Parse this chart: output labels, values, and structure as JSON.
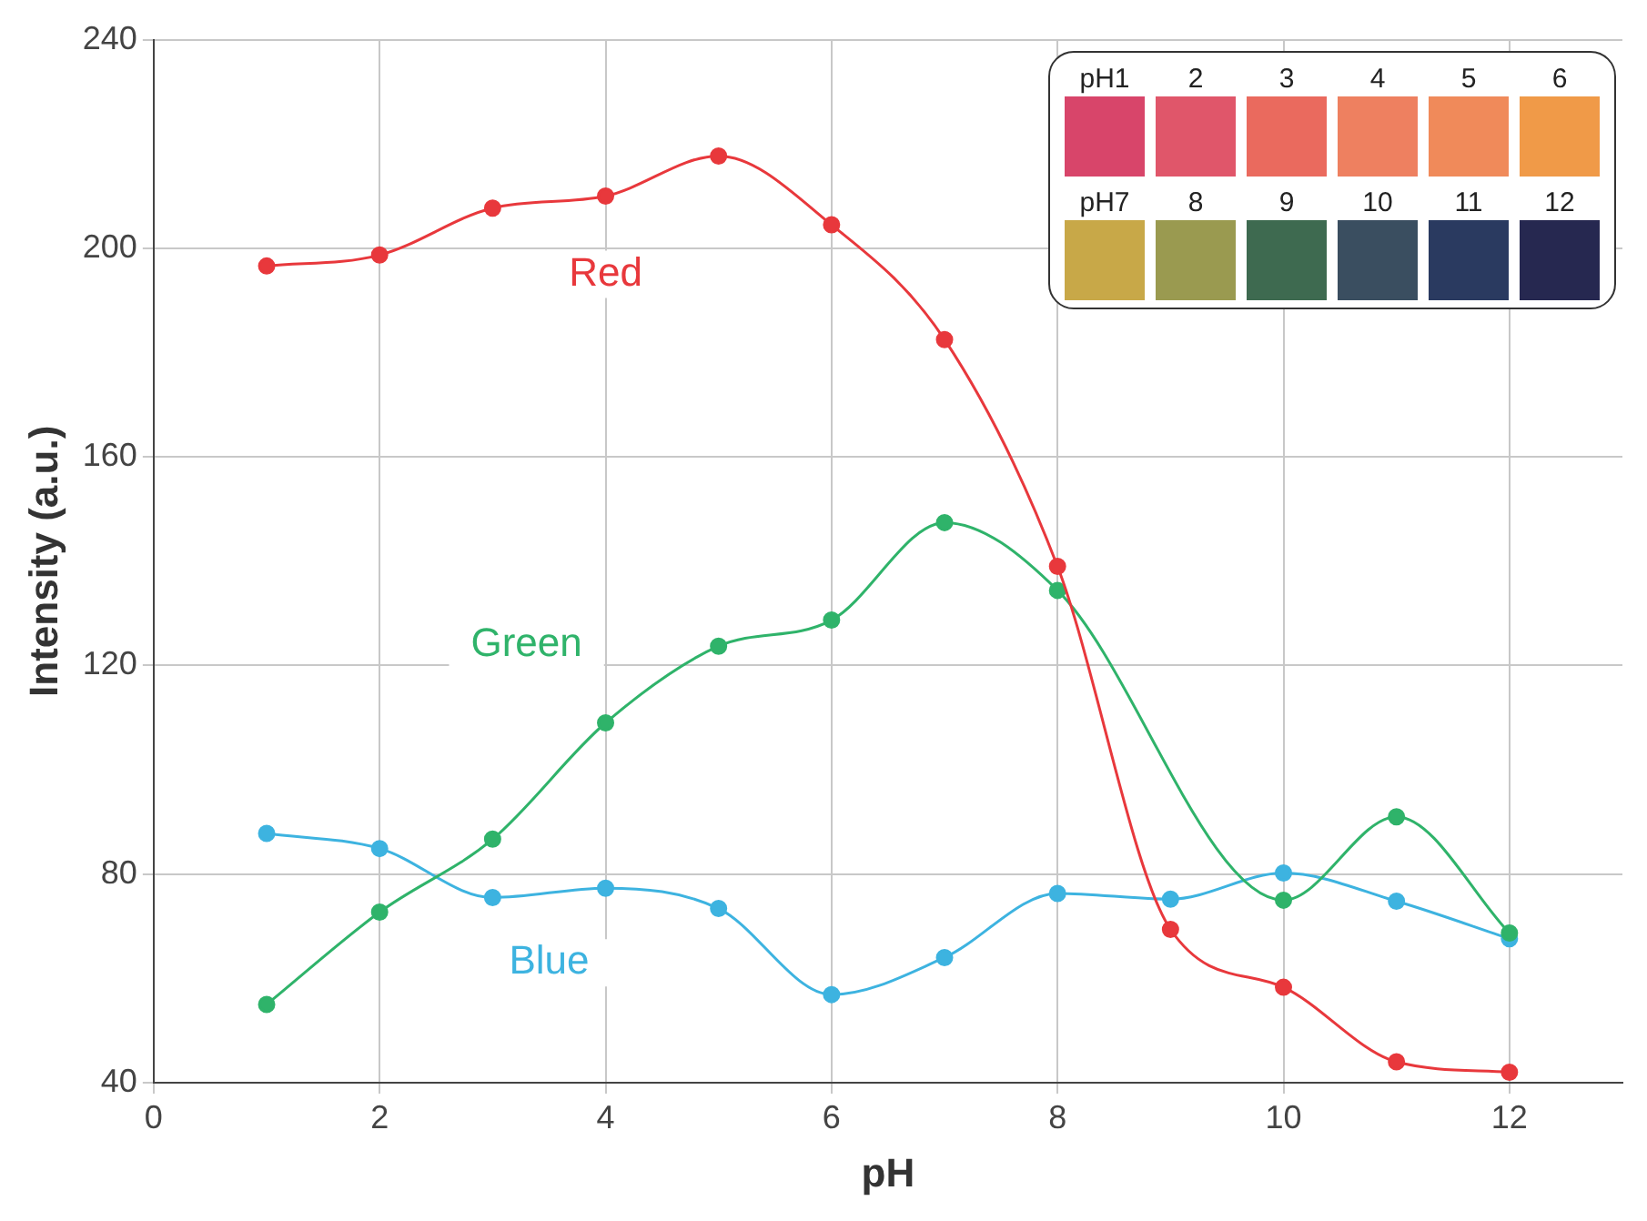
{
  "chart_data": {
    "type": "line",
    "xlabel": "pH",
    "ylabel": "Intensity (a.u.)",
    "x": [
      1,
      2,
      3,
      4,
      5,
      6,
      7,
      8,
      9,
      10,
      11,
      12
    ],
    "series": [
      {
        "name": "Red",
        "color": "#e8383c",
        "values": [
          196.6,
          198.7,
          207.7,
          210,
          217.7,
          204.5,
          182.5,
          139,
          69.4,
          58.3,
          44,
          42
        ]
      },
      {
        "name": "Green",
        "color": "#2fb36a",
        "values": [
          55,
          72.7,
          86.7,
          109,
          123.7,
          128.7,
          147.4,
          134.4,
          null,
          75,
          91,
          68.7
        ]
      },
      {
        "name": "Blue",
        "color": "#3db3e0",
        "values": [
          87.8,
          84.9,
          75.5,
          77.3,
          73.4,
          56.9,
          64,
          76.3,
          75.2,
          80.2,
          74.8,
          67.6
        ]
      }
    ],
    "xlim": [
      0,
      13
    ],
    "xticks": [
      0,
      2,
      4,
      6,
      8,
      10,
      12
    ],
    "ylim": [
      40,
      240
    ],
    "yticks": [
      40,
      80,
      120,
      160,
      200,
      240
    ],
    "grid": true,
    "legend": false,
    "marker": "circle",
    "line_style": "solid",
    "annotations": [
      "pH1",
      "2",
      "3",
      "4",
      "5",
      "6",
      "pH7",
      "8",
      "9",
      "10",
      "11",
      "12"
    ]
  }
}
